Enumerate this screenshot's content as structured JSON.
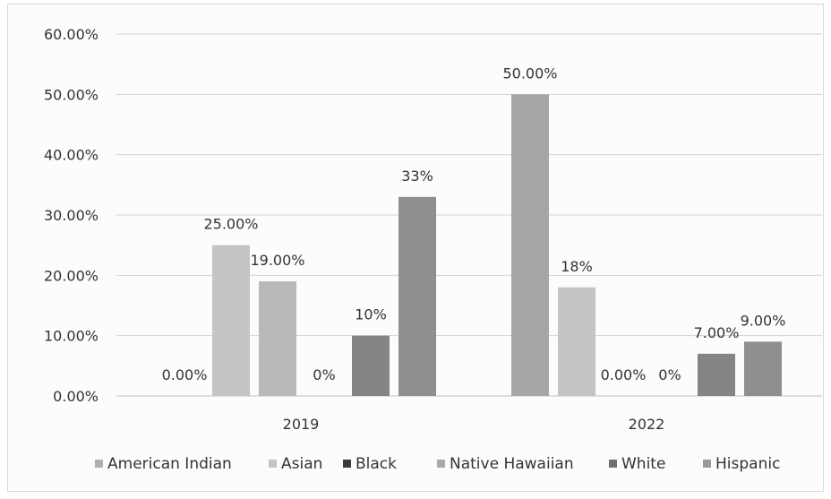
{
  "chart_data": {
    "type": "bar",
    "categories": [
      "2019",
      "2022"
    ],
    "series": [
      {
        "name": "American Indian",
        "values": [
          0.0,
          50.0
        ],
        "labels": [
          "0.00%",
          "50.00%"
        ],
        "color": "#a6a6a6"
      },
      {
        "name": "Asian",
        "values": [
          25.0,
          18.0
        ],
        "labels": [
          "25.00%",
          "18%"
        ],
        "color": "#c4c4c4"
      },
      {
        "name": "Black",
        "values": [
          19.0,
          0.0
        ],
        "labels": [
          "19.00%",
          "0.00%"
        ],
        "color": "#b9b9b9"
      },
      {
        "name": "Native Hawaiian",
        "values": [
          0.0,
          0.0
        ],
        "labels": [
          "0%",
          "0%"
        ],
        "color": "#a9a9a9"
      },
      {
        "name": "White",
        "values": [
          10.0,
          7.0
        ],
        "labels": [
          "10%",
          "7.00%"
        ],
        "color": "#858585"
      },
      {
        "name": "Hispanic",
        "values": [
          33.0,
          9.0
        ],
        "labels": [
          "33%",
          "9.00%"
        ],
        "color": "#8f8f8f"
      }
    ],
    "yticks": [
      "0.00%",
      "10.00%",
      "20.00%",
      "30.00%",
      "40.00%",
      "50.00%",
      "60.00%"
    ],
    "ylim": [
      0,
      60
    ],
    "grid": true,
    "legend_position": "bottom",
    "legend_marker_colors": [
      "#b0b0b0",
      "#c4c4c4",
      "#3a3a3a",
      "#a9a9a9",
      "#6f6f6f",
      "#9a9a9a"
    ]
  }
}
